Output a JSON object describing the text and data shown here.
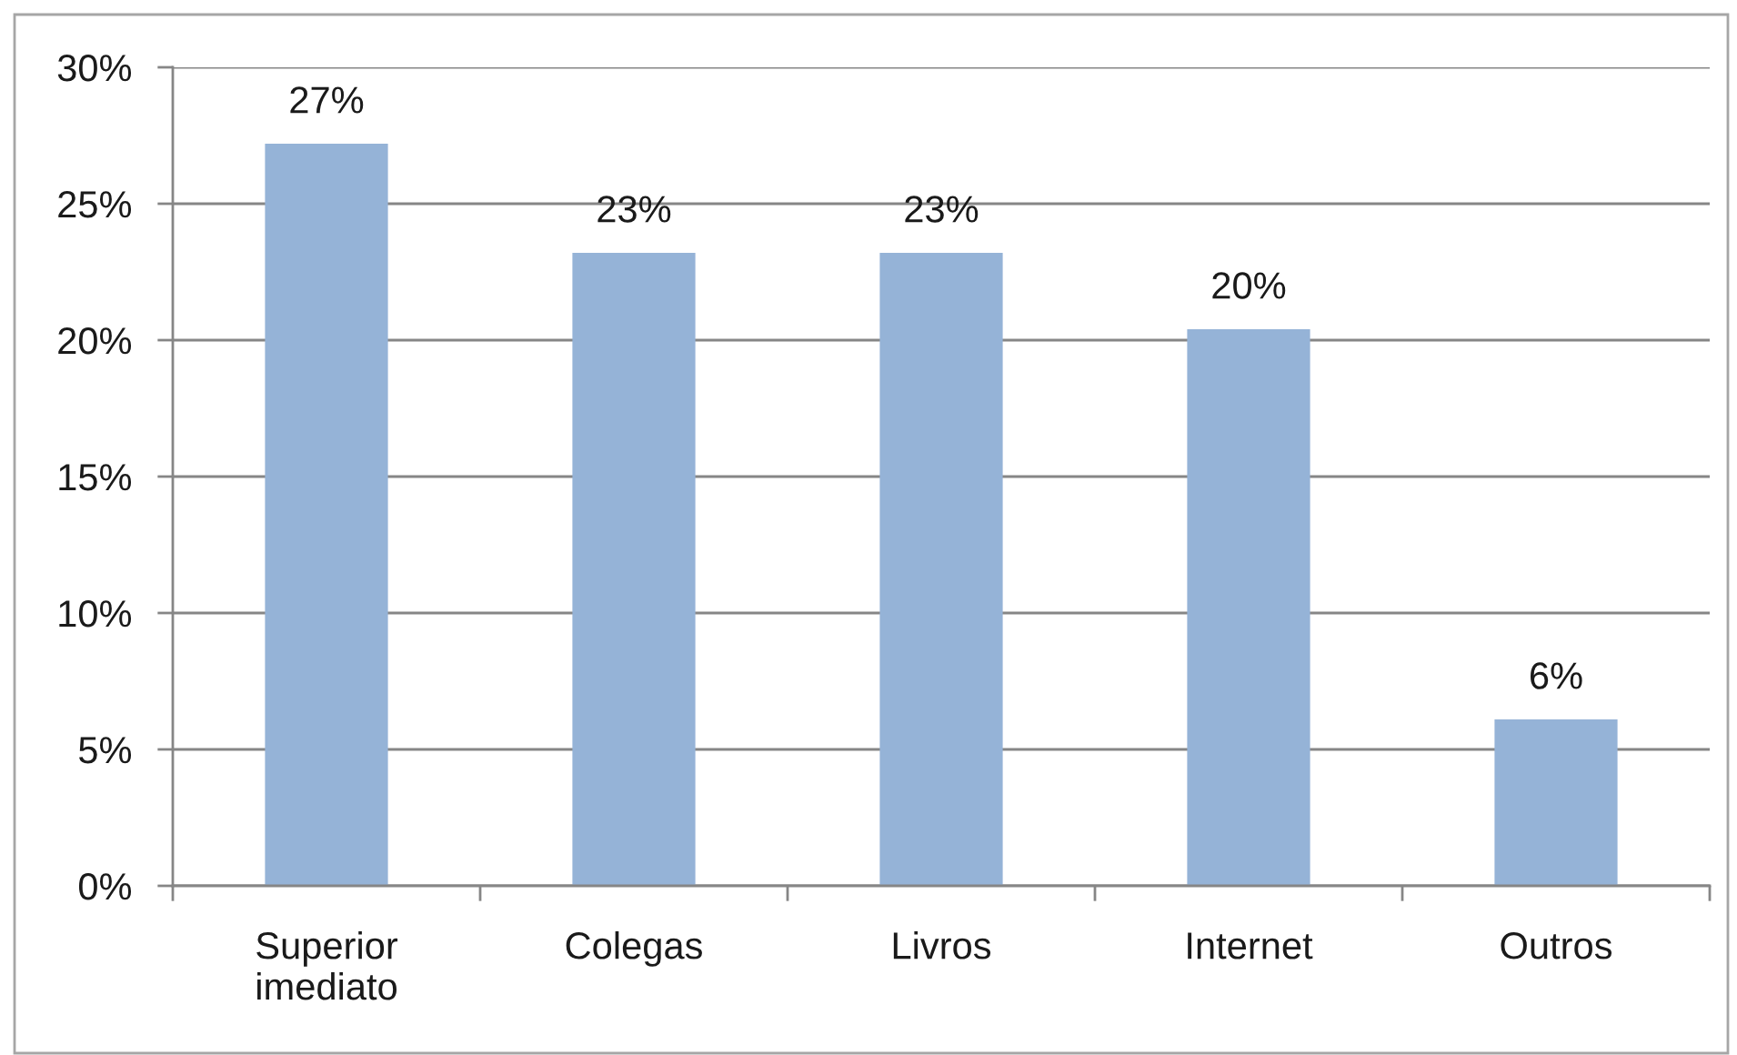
{
  "chart_data": {
    "type": "bar",
    "categories": [
      "Superior\nimediato",
      "Colegas",
      "Livros",
      "Internet",
      "Outros"
    ],
    "values": [
      27.2,
      23.2,
      23.2,
      20.4,
      6.1
    ],
    "value_labels": [
      "27%",
      "23%",
      "23%",
      "20%",
      "6%"
    ],
    "color": "#95b3d7",
    "ylim": [
      0,
      30
    ],
    "yticks": [
      {
        "value": 0,
        "label": "0%"
      },
      {
        "value": 5,
        "label": "5%"
      },
      {
        "value": 10,
        "label": "10%"
      },
      {
        "value": 15,
        "label": "15%"
      },
      {
        "value": 20,
        "label": "20%"
      },
      {
        "value": 25,
        "label": "25%"
      },
      {
        "value": 30,
        "label": "30%"
      }
    ],
    "grid": "y"
  }
}
